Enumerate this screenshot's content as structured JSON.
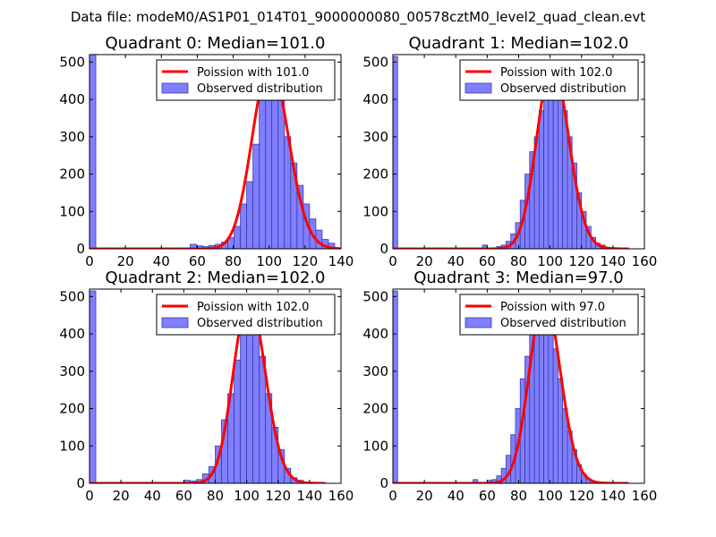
{
  "figure": {
    "suptitle": "Data file: modeM0/AS1P01_014T01_9000000080_00578cztM0_level2_quad_clean.evt",
    "hist_color": "#7f7fff",
    "hist_edge": "#3a3aa8",
    "fit_color": "#ff0000"
  },
  "chart_data": [
    {
      "type": "bar",
      "title": "Quadrant 0: Median=101.0",
      "median": 101.0,
      "xlim": [
        0,
        140
      ],
      "ylim": [
        0,
        520
      ],
      "xticks": [
        0,
        20,
        40,
        60,
        80,
        100,
        120,
        140
      ],
      "yticks": [
        0,
        100,
        200,
        300,
        400,
        500
      ],
      "legend": {
        "fit": "Poission with 101.0",
        "hist": "Observed distribution"
      },
      "bin_width": 3.5,
      "bins": [
        {
          "x": 0,
          "y": 520
        },
        {
          "x": 56,
          "y": 12
        },
        {
          "x": 59.5,
          "y": 8
        },
        {
          "x": 63,
          "y": 6
        },
        {
          "x": 66.5,
          "y": 9
        },
        {
          "x": 70,
          "y": 12
        },
        {
          "x": 73.5,
          "y": 18
        },
        {
          "x": 77,
          "y": 30
        },
        {
          "x": 80.5,
          "y": 60
        },
        {
          "x": 84,
          "y": 120
        },
        {
          "x": 87.5,
          "y": 180
        },
        {
          "x": 91,
          "y": 280
        },
        {
          "x": 94.5,
          "y": 400
        },
        {
          "x": 98,
          "y": 480
        },
        {
          "x": 101.5,
          "y": 460
        },
        {
          "x": 105,
          "y": 415
        },
        {
          "x": 108.5,
          "y": 300
        },
        {
          "x": 112,
          "y": 230
        },
        {
          "x": 115.5,
          "y": 170
        },
        {
          "x": 119,
          "y": 120
        },
        {
          "x": 122.5,
          "y": 80
        },
        {
          "x": 126,
          "y": 50
        },
        {
          "x": 129.5,
          "y": 25
        },
        {
          "x": 133,
          "y": 15
        }
      ]
    },
    {
      "type": "bar",
      "title": "Quadrant 1: Median=102.0",
      "median": 102.0,
      "xlim": [
        0,
        160
      ],
      "ylim": [
        0,
        520
      ],
      "xticks": [
        0,
        20,
        40,
        60,
        80,
        100,
        120,
        140,
        160
      ],
      "yticks": [
        0,
        100,
        200,
        300,
        400,
        500
      ],
      "legend": {
        "fit": "Poission with 102.0",
        "hist": "Observed distribution"
      },
      "bin_width": 3,
      "bins": [
        {
          "x": 0,
          "y": 515
        },
        {
          "x": 57,
          "y": 10
        },
        {
          "x": 66,
          "y": 6
        },
        {
          "x": 69,
          "y": 10
        },
        {
          "x": 72,
          "y": 20
        },
        {
          "x": 75,
          "y": 40
        },
        {
          "x": 78,
          "y": 70
        },
        {
          "x": 81,
          "y": 130
        },
        {
          "x": 84,
          "y": 200
        },
        {
          "x": 87,
          "y": 260
        },
        {
          "x": 90,
          "y": 300
        },
        {
          "x": 93,
          "y": 370
        },
        {
          "x": 96,
          "y": 440
        },
        {
          "x": 99,
          "y": 460
        },
        {
          "x": 102,
          "y": 500
        },
        {
          "x": 105,
          "y": 440
        },
        {
          "x": 108,
          "y": 370
        },
        {
          "x": 111,
          "y": 300
        },
        {
          "x": 114,
          "y": 230
        },
        {
          "x": 117,
          "y": 150
        },
        {
          "x": 120,
          "y": 100
        },
        {
          "x": 123,
          "y": 60
        },
        {
          "x": 126,
          "y": 30
        },
        {
          "x": 129,
          "y": 15
        },
        {
          "x": 132,
          "y": 10
        }
      ]
    },
    {
      "type": "bar",
      "title": "Quadrant 2: Median=102.0",
      "median": 102.0,
      "xlim": [
        0,
        160
      ],
      "ylim": [
        0,
        520
      ],
      "xticks": [
        0,
        20,
        40,
        60,
        80,
        100,
        120,
        140,
        160
      ],
      "yticks": [
        0,
        100,
        200,
        300,
        400,
        500
      ],
      "legend": {
        "fit": "Poission with 102.0",
        "hist": "Observed distribution"
      },
      "bin_width": 4,
      "bins": [
        {
          "x": 0,
          "y": 515
        },
        {
          "x": 60,
          "y": 8
        },
        {
          "x": 64,
          "y": 6
        },
        {
          "x": 68,
          "y": 10
        },
        {
          "x": 72,
          "y": 25
        },
        {
          "x": 76,
          "y": 45
        },
        {
          "x": 80,
          "y": 100
        },
        {
          "x": 84,
          "y": 170
        },
        {
          "x": 88,
          "y": 240
        },
        {
          "x": 92,
          "y": 330
        },
        {
          "x": 96,
          "y": 420
        },
        {
          "x": 100,
          "y": 470
        },
        {
          "x": 104,
          "y": 430
        },
        {
          "x": 108,
          "y": 340
        },
        {
          "x": 112,
          "y": 240
        },
        {
          "x": 116,
          "y": 150
        },
        {
          "x": 120,
          "y": 90
        },
        {
          "x": 124,
          "y": 40
        },
        {
          "x": 128,
          "y": 15
        },
        {
          "x": 132,
          "y": 8
        }
      ]
    },
    {
      "type": "bar",
      "title": "Quadrant 3: Median=97.0",
      "median": 97.0,
      "xlim": [
        0,
        160
      ],
      "ylim": [
        0,
        520
      ],
      "xticks": [
        0,
        20,
        40,
        60,
        80,
        100,
        120,
        140,
        160
      ],
      "yticks": [
        0,
        100,
        200,
        300,
        400,
        500
      ],
      "legend": {
        "fit": "Poission with 97.0",
        "hist": "Observed distribution"
      },
      "bin_width": 3,
      "bins": [
        {
          "x": 0,
          "y": 515
        },
        {
          "x": 51,
          "y": 10
        },
        {
          "x": 60,
          "y": 8
        },
        {
          "x": 63,
          "y": 10
        },
        {
          "x": 66,
          "y": 20
        },
        {
          "x": 69,
          "y": 40
        },
        {
          "x": 72,
          "y": 75
        },
        {
          "x": 75,
          "y": 130
        },
        {
          "x": 78,
          "y": 200
        },
        {
          "x": 81,
          "y": 280
        },
        {
          "x": 84,
          "y": 340
        },
        {
          "x": 87,
          "y": 400
        },
        {
          "x": 90,
          "y": 430
        },
        {
          "x": 93,
          "y": 470
        },
        {
          "x": 96,
          "y": 480
        },
        {
          "x": 99,
          "y": 430
        },
        {
          "x": 102,
          "y": 360
        },
        {
          "x": 105,
          "y": 280
        },
        {
          "x": 108,
          "y": 200
        },
        {
          "x": 111,
          "y": 140
        },
        {
          "x": 114,
          "y": 90
        },
        {
          "x": 117,
          "y": 50
        },
        {
          "x": 120,
          "y": 25
        },
        {
          "x": 123,
          "y": 12
        },
        {
          "x": 126,
          "y": 6
        }
      ]
    }
  ]
}
